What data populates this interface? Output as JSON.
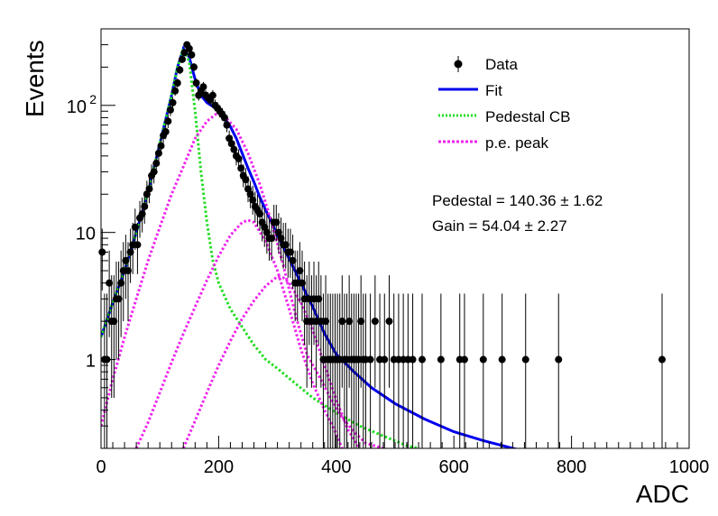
{
  "chart_data": {
    "type": "scatter",
    "xlabel": "ADC",
    "ylabel": "Events",
    "xlim": [
      0,
      1000
    ],
    "ylim": [
      0.2,
      400
    ],
    "yscale": "log",
    "x_ticks": [
      "0",
      "200",
      "400",
      "600",
      "800",
      "1000"
    ],
    "y_ticks": [
      {
        "value": 1,
        "base": "1",
        "exp": ""
      },
      {
        "value": 10,
        "base": "10",
        "exp": ""
      },
      {
        "value": 100,
        "base": "10",
        "exp": "2"
      }
    ],
    "legend_position": "top-right",
    "legend": [
      {
        "label": "Data",
        "style": "marker",
        "color": "#000000"
      },
      {
        "label": "Fit",
        "style": "solid",
        "color": "#0000ee"
      },
      {
        "label": "Pedestal CB",
        "style": "dotted",
        "color": "#22dd22"
      },
      {
        "label": "p.e. peak",
        "style": "dotted",
        "color": "#ee22ee"
      }
    ],
    "annotations": [
      "Pedestal = 140.36 ± 1.62",
      "Gain = 54.04 ± 2.27"
    ],
    "fit_parameters": {
      "pedestal": 140.36,
      "pedestal_error": 1.62,
      "gain": 54.04,
      "gain_error": 2.27
    },
    "series": [
      {
        "name": "Data",
        "kind": "points",
        "color": "#000000",
        "x": [
          2,
          6,
          10,
          14,
          18,
          22,
          26,
          30,
          34,
          38,
          42,
          46,
          50,
          54,
          58,
          62,
          66,
          70,
          74,
          78,
          82,
          86,
          90,
          94,
          98,
          102,
          106,
          110,
          114,
          118,
          122,
          126,
          130,
          134,
          138,
          142,
          146,
          150,
          154,
          158,
          162,
          166,
          170,
          174,
          178,
          182,
          186,
          190,
          194,
          198,
          202,
          206,
          210,
          214,
          218,
          222,
          226,
          230,
          234,
          238,
          242,
          246,
          250,
          254,
          258,
          262,
          266,
          270,
          274,
          278,
          282,
          286,
          290,
          294,
          298,
          302,
          306,
          310,
          314,
          318,
          322,
          326,
          330,
          334,
          338,
          342,
          346,
          350,
          354,
          358,
          362,
          366,
          370,
          374,
          378,
          382,
          386,
          390,
          394,
          398,
          402,
          406,
          410,
          414,
          418,
          422,
          426,
          430,
          434,
          438,
          442,
          446,
          450,
          458,
          466,
          474,
          482,
          490,
          498,
          506,
          514,
          522,
          530,
          546,
          578,
          610,
          618,
          650,
          682,
          722,
          778,
          954
        ],
        "y": [
          7,
          1,
          1,
          4,
          2,
          2,
          3,
          3,
          4,
          5,
          6,
          5,
          7,
          8,
          11,
          8,
          13,
          14,
          16,
          20,
          22,
          28,
          30,
          35,
          42,
          48,
          58,
          62,
          75,
          92,
          105,
          130,
          150,
          190,
          230,
          260,
          300,
          280,
          250,
          200,
          150,
          120,
          130,
          140,
          120,
          115,
          110,
          120,
          100,
          95,
          90,
          85,
          80,
          70,
          55,
          50,
          45,
          40,
          38,
          32,
          28,
          26,
          22,
          20,
          18,
          16,
          15,
          14,
          12,
          11,
          10,
          9,
          9,
          12,
          12,
          10,
          9,
          8,
          8,
          7,
          7,
          6,
          4,
          4,
          5,
          4,
          3,
          2,
          3,
          2,
          3,
          2,
          3,
          2,
          1,
          2,
          1,
          1,
          1,
          1,
          1,
          1,
          2,
          1,
          1,
          2,
          1,
          1,
          1,
          1,
          2,
          1,
          1,
          1,
          2,
          1,
          1,
          2,
          1,
          1,
          1,
          1,
          1,
          1,
          1,
          1,
          1,
          1,
          1,
          1,
          1,
          1
        ],
        "y_error_lo": [
          3.5,
          0.8,
          0.8,
          2.5,
          1.5,
          1.5,
          2,
          2,
          2.5,
          3,
          3,
          3,
          3,
          3.3,
          3.7,
          3.3,
          3.9,
          4,
          4.3,
          4.7,
          5,
          5.4,
          5.7,
          6,
          6.5,
          7,
          7.6,
          7.9,
          8.7,
          9.6,
          10,
          11,
          12,
          14,
          15,
          16,
          17,
          17,
          16,
          14,
          12,
          11,
          11,
          12,
          11,
          10.7,
          10.5,
          11,
          10,
          9.7,
          9.5,
          9.2,
          9,
          8.4,
          7.4,
          7.1,
          6.7,
          6.3,
          6.2,
          5.7,
          5.3,
          5.1,
          4.7,
          4.5,
          4.2,
          4,
          3.9,
          3.7,
          3.5,
          3.3,
          3.2,
          3,
          3,
          3.5,
          3.5,
          3.2,
          3,
          2.8,
          2.8,
          2.6,
          2.6,
          2.4,
          2,
          2,
          2.2,
          2,
          1.7,
          1.4,
          1.7,
          1.4,
          1.7,
          1.4,
          1.7,
          1.4,
          0.8,
          1.4,
          0.8,
          0.8,
          0.8,
          0.8,
          0.8,
          0.8,
          1.4,
          0.8,
          0.8,
          1.4,
          0.8,
          0.8,
          0.8,
          0.8,
          1.4,
          0.8,
          0.8,
          0.8,
          1.4,
          0.8,
          0.8,
          1.4,
          0.8,
          0.8,
          0.8,
          0.8,
          0.8,
          0.8,
          0.8,
          0.8,
          0.8,
          0.8,
          0.8,
          0.8,
          0.8,
          0.8
        ],
        "y_error_hi": [
          3.7,
          2.3,
          2.3,
          3.2,
          2.6,
          2.6,
          2.9,
          2.9,
          3.2,
          3.4,
          3.6,
          3.4,
          3.7,
          3.9,
          4.4,
          3.9,
          4.7,
          4.8,
          5.1,
          5.5,
          5.8,
          6.3,
          6.5,
          7,
          7.5,
          8,
          8.6,
          9,
          9.9,
          10.8,
          11.3,
          12.5,
          13.3,
          14.8,
          16.2,
          17.2,
          18.3,
          17.7,
          16.8,
          15.2,
          13.3,
          12,
          12.4,
          12.8,
          12,
          11.7,
          11.5,
          12,
          11,
          10.8,
          10.5,
          10.2,
          10,
          9.4,
          8.4,
          8.1,
          7.7,
          7.4,
          7.2,
          6.7,
          6.3,
          6.1,
          5.7,
          5.5,
          5.3,
          5,
          4.9,
          4.8,
          4.5,
          4.4,
          4.2,
          4.1,
          4.1,
          4.5,
          4.5,
          4.2,
          4.1,
          3.9,
          3.9,
          3.7,
          3.7,
          3.6,
          3.2,
          3.2,
          3.4,
          3.2,
          2.9,
          2.6,
          2.9,
          2.6,
          2.9,
          2.6,
          2.9,
          2.6,
          2.3,
          2.6,
          2.3,
          2.3,
          2.3,
          2.3,
          2.3,
          2.3,
          2.6,
          2.3,
          2.3,
          2.6,
          2.3,
          2.3,
          2.3,
          2.3,
          2.6,
          2.3,
          2.3,
          2.3,
          2.6,
          2.3,
          2.3,
          2.6,
          2.3,
          2.3,
          2.3,
          2.3,
          2.3,
          2.3,
          2.3,
          2.3,
          2.3,
          2.3,
          2.3,
          2.3,
          2.3,
          2.3
        ],
        "x_error": 2
      },
      {
        "name": "Fit",
        "kind": "line",
        "style": "solid",
        "color": "#0000ee",
        "x": [
          0,
          20,
          40,
          60,
          80,
          100,
          120,
          130,
          140,
          150,
          160,
          170,
          180,
          190,
          200,
          210,
          220,
          230,
          240,
          250,
          260,
          270,
          280,
          290,
          300,
          320,
          340,
          360,
          380,
          400,
          430,
          460,
          500,
          550,
          600,
          650,
          700,
          720
        ],
        "y": [
          1.5,
          2.8,
          5,
          10,
          21,
          50,
          120,
          200,
          280,
          240,
          160,
          120,
          105,
          98,
          90,
          80,
          68,
          55,
          42,
          32,
          25,
          19,
          15,
          12,
          9.5,
          6.2,
          4,
          2.6,
          1.6,
          1.1,
          0.8,
          0.6,
          0.45,
          0.34,
          0.27,
          0.23,
          0.2,
          0.19
        ]
      },
      {
        "name": "Pedestal CB",
        "kind": "line",
        "style": "dotted",
        "color": "#22dd22",
        "x": [
          0,
          20,
          40,
          60,
          80,
          100,
          120,
          130,
          140,
          150,
          160,
          170,
          180,
          190,
          200,
          220,
          240,
          260,
          280,
          300,
          330,
          360,
          400,
          440,
          480,
          520,
          540
        ],
        "y": [
          1.5,
          2.8,
          5,
          10,
          21,
          50,
          120,
          200,
          280,
          220,
          90,
          30,
          12,
          6,
          4,
          2.5,
          1.8,
          1.3,
          1,
          0.85,
          0.65,
          0.5,
          0.38,
          0.3,
          0.25,
          0.21,
          0.2
        ]
      },
      {
        "name": "p.e. peak 1",
        "kind": "line",
        "style": "dotted",
        "color": "#ee22ee",
        "x": [
          0,
          20,
          40,
          60,
          80,
          100,
          120,
          140,
          160,
          180,
          195,
          210,
          230,
          250,
          270,
          290,
          310,
          330,
          350,
          370,
          390,
          410,
          430,
          450,
          480
        ],
        "y": [
          0.3,
          0.7,
          1.5,
          3,
          6,
          11,
          20,
          33,
          55,
          75,
          85,
          82,
          65,
          42,
          24,
          12,
          5.5,
          2.3,
          1.1,
          0.75,
          0.5,
          0.35,
          0.27,
          0.22,
          0.2
        ]
      },
      {
        "name": "p.e. peak 2",
        "kind": "line",
        "style": "dotted",
        "color": "#ee22ee",
        "x": [
          60,
          80,
          100,
          120,
          140,
          160,
          180,
          200,
          220,
          240,
          250,
          260,
          280,
          300,
          320,
          340,
          360,
          380,
          400,
          410
        ],
        "y": [
          0.2,
          0.32,
          0.55,
          0.95,
          1.6,
          2.6,
          4.2,
          6.5,
          9.5,
          12,
          12.5,
          12,
          8.5,
          5,
          2.5,
          1.2,
          0.65,
          0.4,
          0.26,
          0.2
        ]
      },
      {
        "name": "p.e. peak 3",
        "kind": "line",
        "style": "dotted",
        "color": "#ee22ee",
        "x": [
          140,
          160,
          180,
          200,
          220,
          240,
          260,
          280,
          300,
          310,
          320,
          340,
          360,
          380,
          400,
          420,
          440
        ],
        "y": [
          0.2,
          0.33,
          0.55,
          0.9,
          1.4,
          2.1,
          2.9,
          3.8,
          4.5,
          4.4,
          4,
          2.8,
          1.7,
          0.9,
          0.48,
          0.28,
          0.2
        ]
      }
    ]
  }
}
